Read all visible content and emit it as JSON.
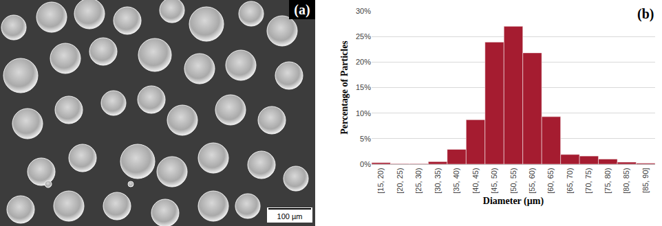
{
  "image_panel": {
    "label": "(a)",
    "scale_bar": "100 µm"
  },
  "chart_data": {
    "type": "bar",
    "x_label": "Diameter (µm)",
    "y_label": "Percentage of Particles",
    "annotations": [
      "(b)"
    ],
    "categories": [
      "[15, 20)",
      "[20, 25)",
      "[25, 30)",
      "[30, 35)",
      "[35, 40)",
      "[40, 45)",
      "[45, 50)",
      "[50, 55)",
      "[55, 60)",
      "[60, 65)",
      "[65, 70)",
      "[70, 75)",
      "[75, 80)",
      "[80, 85)",
      "[85, 90]"
    ],
    "values": [
      0.3,
      0.1,
      0.1,
      0.5,
      2.9,
      8.7,
      23.9,
      27.0,
      21.8,
      9.3,
      1.9,
      1.6,
      1.0,
      0.4,
      0.2
    ],
    "color": "#a51c30",
    "ylim": [
      0,
      30
    ],
    "yticks": [
      {
        "value": 0,
        "label": "0%"
      },
      {
        "value": 5,
        "label": "5%"
      },
      {
        "value": 10,
        "label": "10%"
      },
      {
        "value": 15,
        "label": "15%"
      },
      {
        "value": 20,
        "label": "20%"
      },
      {
        "value": 25,
        "label": "25%"
      },
      {
        "value": 30,
        "label": "30%"
      }
    ],
    "grid": true
  }
}
